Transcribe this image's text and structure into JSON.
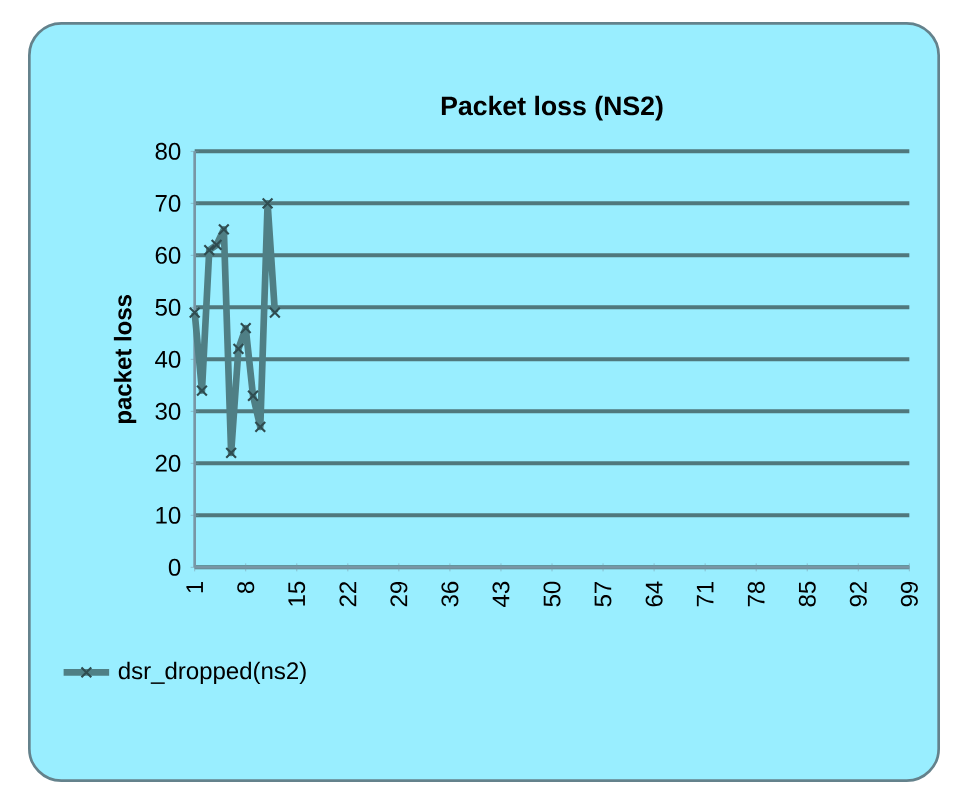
{
  "chart_data": {
    "type": "line",
    "title": "Packet loss (NS2)",
    "ylabel": "packet loss",
    "categories": [
      "1",
      null,
      null,
      null,
      null,
      null,
      null,
      "8",
      null,
      null,
      null,
      null,
      null,
      null,
      "15",
      null,
      null,
      null,
      null,
      null,
      null,
      "22",
      null,
      null,
      null,
      null,
      null,
      null,
      "29",
      null,
      null,
      null,
      null,
      null,
      null,
      "36",
      null,
      null,
      null,
      null,
      null,
      null,
      "43",
      null,
      null,
      null,
      null,
      null,
      null,
      "50",
      null,
      null,
      null,
      null,
      null,
      null,
      "57",
      null,
      null,
      null,
      null,
      null,
      null,
      "64",
      null,
      null,
      null,
      null,
      null,
      null,
      "71",
      null,
      null,
      null,
      null,
      null,
      null,
      "78",
      null,
      null,
      null,
      null,
      null,
      null,
      "85",
      null,
      null,
      null,
      null,
      null,
      null,
      "92",
      null,
      null,
      null,
      null,
      null,
      null,
      "99"
    ],
    "series": [
      {
        "name": "dsr_dropped(ns2)",
        "color": "#4f7f85",
        "values": [
          49,
          34,
          61,
          62,
          65,
          22,
          42,
          46,
          33,
          27,
          70,
          49,
          null,
          null,
          null,
          null,
          null,
          null,
          null,
          null,
          null,
          null,
          null,
          null,
          null,
          null,
          null,
          null,
          null,
          null,
          null,
          null,
          null,
          null,
          null,
          null,
          null,
          null,
          null,
          null,
          null,
          null,
          null,
          null,
          null,
          null,
          null,
          null,
          null,
          null,
          null,
          null,
          null,
          null,
          null,
          null,
          null,
          null,
          null,
          null,
          null,
          null,
          null,
          null,
          null,
          null,
          null,
          null,
          null,
          null,
          null,
          null,
          null,
          null,
          null,
          null,
          null,
          null,
          null,
          null,
          null,
          null,
          null,
          null,
          null,
          null,
          null,
          null,
          null,
          null,
          null,
          null,
          null,
          null,
          null,
          null,
          null,
          null,
          null
        ]
      }
    ],
    "ylim": [
      0,
      80
    ],
    "yticks": [
      0,
      10,
      20,
      30,
      40,
      50,
      60,
      70,
      80
    ],
    "grid": "y",
    "legend": "bottom left",
    "marker": "cross",
    "line_style": "solid"
  }
}
